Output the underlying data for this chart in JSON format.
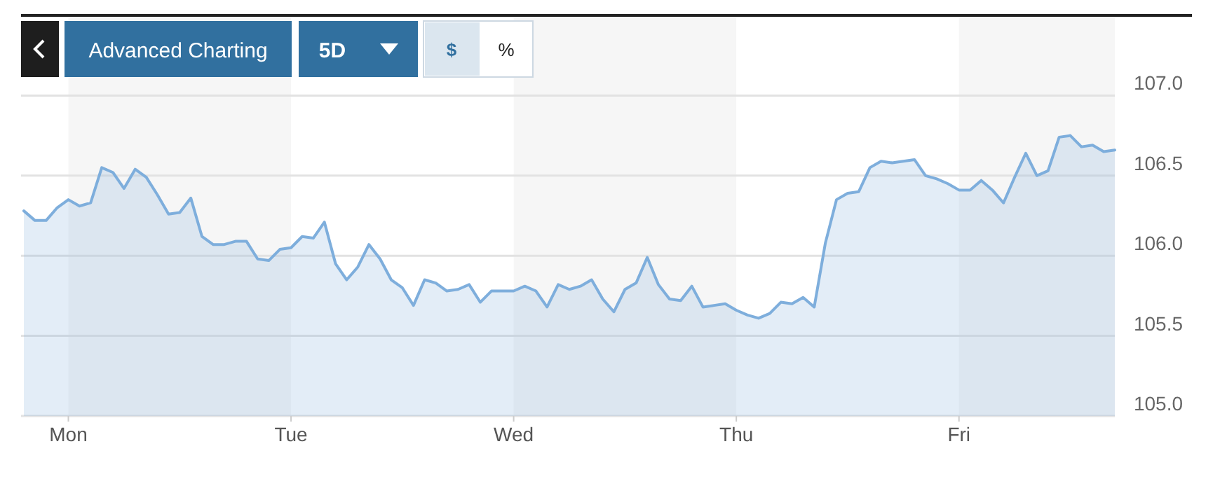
{
  "chart_data": {
    "type": "area",
    "categories": [
      null,
      null,
      null,
      null,
      "Mon",
      null,
      null,
      null,
      null,
      null,
      null,
      null,
      null,
      null,
      null,
      null,
      null,
      null,
      null,
      null,
      null,
      null,
      null,
      null,
      "Tue",
      null,
      null,
      null,
      null,
      null,
      null,
      null,
      null,
      null,
      null,
      null,
      null,
      null,
      null,
      null,
      null,
      null,
      null,
      null,
      "Wed",
      null,
      null,
      null,
      null,
      null,
      null,
      null,
      null,
      null,
      null,
      null,
      null,
      null,
      null,
      null,
      null,
      null,
      null,
      null,
      "Thu",
      null,
      null,
      null,
      null,
      null,
      null,
      null,
      null,
      null,
      null,
      null,
      null,
      null,
      null,
      null,
      null,
      null,
      null,
      null,
      "Fri",
      null,
      null,
      null,
      null,
      null,
      null,
      null,
      null,
      null,
      null,
      null,
      null,
      null,
      null
    ],
    "series": [
      {
        "color": "#7eaedc",
        "values": [
          106.28,
          106.22,
          106.22,
          106.3,
          106.35,
          106.31,
          106.33,
          106.55,
          106.52,
          106.42,
          106.54,
          106.49,
          106.38,
          106.26,
          106.27,
          106.36,
          106.12,
          106.07,
          106.07,
          106.09,
          106.09,
          105.98,
          105.97,
          106.04,
          106.05,
          106.12,
          106.11,
          106.21,
          105.95,
          105.85,
          105.93,
          106.07,
          105.98,
          105.85,
          105.8,
          105.69,
          105.85,
          105.83,
          105.78,
          105.79,
          105.82,
          105.71,
          105.78,
          105.78,
          105.78,
          105.81,
          105.78,
          105.68,
          105.82,
          105.79,
          105.81,
          105.85,
          105.73,
          105.65,
          105.79,
          105.83,
          105.99,
          105.82,
          105.73,
          105.72,
          105.81,
          105.68,
          105.69,
          105.7,
          105.66,
          105.63,
          105.61,
          105.64,
          105.71,
          105.7,
          105.74,
          105.68,
          106.08,
          106.35,
          106.39,
          106.4,
          106.55,
          106.59,
          106.58,
          106.59,
          106.6,
          106.5,
          106.48,
          106.45,
          106.41,
          106.41,
          106.47,
          106.41,
          106.33,
          106.49,
          106.64,
          106.5,
          106.53,
          106.74,
          106.75,
          106.68,
          106.69,
          106.65,
          106.66
        ]
      }
    ],
    "ylim": [
      105,
      107.5
    ],
    "yticks": [
      {
        "value": 105,
        "label": "105.0"
      },
      {
        "value": 105.5,
        "label": "105.5"
      },
      {
        "value": 106,
        "label": "106.0"
      },
      {
        "value": 106.5,
        "label": "106.5"
      },
      {
        "value": 107,
        "label": "107.0"
      }
    ],
    "grid": "y",
    "annotations": [
      "Advanced Charting",
      "5D",
      "$",
      "%"
    ]
  }
}
